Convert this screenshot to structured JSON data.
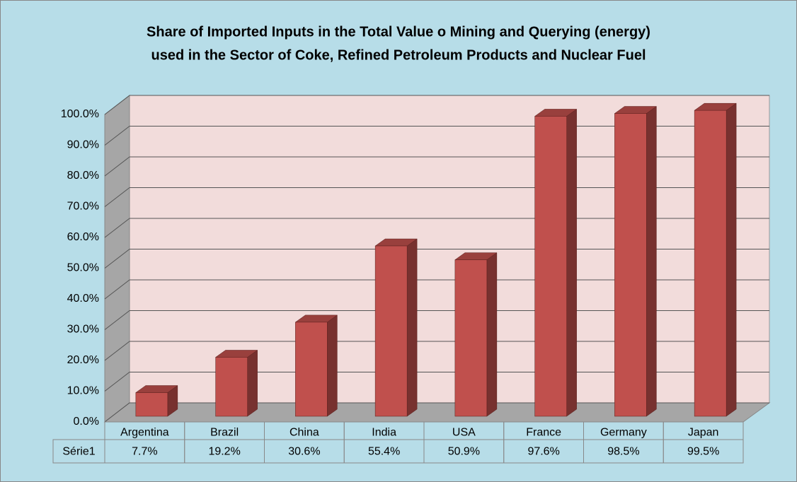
{
  "chart_data": {
    "type": "bar",
    "title": [
      "Share of Imported Inputs in the Total Value o Mining and Querying (energy)",
      "used in the Sector of Coke, Refined Petroleum Products and Nuclear Fuel"
    ],
    "categories": [
      "Argentina",
      "Brazil",
      "China",
      "India",
      "USA",
      "France",
      "Germany",
      "Japan"
    ],
    "series": [
      {
        "name": "Série1",
        "color": "#c0504d",
        "values": [
          7.7,
          19.2,
          30.6,
          55.4,
          50.9,
          97.6,
          98.5,
          99.5
        ],
        "value_labels": [
          "7.7%",
          "19.2%",
          "30.6%",
          "55.4%",
          "50.9%",
          "97.6%",
          "98.5%",
          "99.5%"
        ]
      }
    ],
    "ylim": [
      0,
      100
    ],
    "yticks": [
      {
        "value": 0,
        "label": "0.0%"
      },
      {
        "value": 10,
        "label": "10.0%"
      },
      {
        "value": 20,
        "label": "20.0%"
      },
      {
        "value": 30,
        "label": "30.0%"
      },
      {
        "value": 40,
        "label": "40.0%"
      },
      {
        "value": 50,
        "label": "50.0%"
      },
      {
        "value": 60,
        "label": "60.0%"
      },
      {
        "value": 70,
        "label": "70.0%"
      },
      {
        "value": 80,
        "label": "80.0%"
      },
      {
        "value": 90,
        "label": "90.0%"
      },
      {
        "value": 100,
        "label": "100.0%"
      }
    ],
    "grid": true
  }
}
